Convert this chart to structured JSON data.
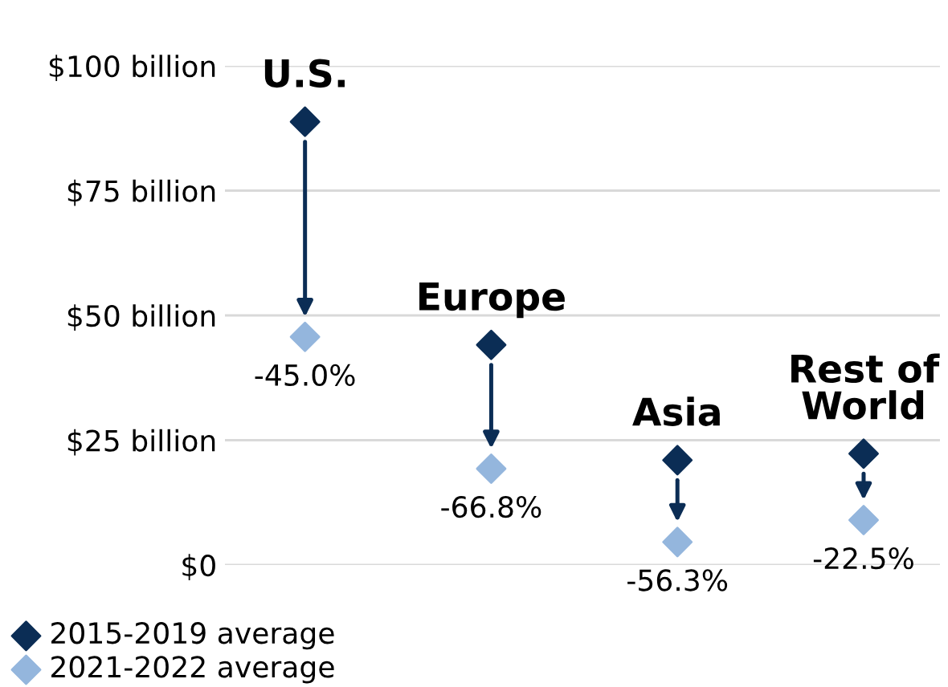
{
  "chart_data": {
    "type": "scatter",
    "categories": [
      "U.S.",
      "Europe",
      "Asia",
      "Rest of World"
    ],
    "series": [
      {
        "name": "2015-2019 average",
        "color": "#0b2d55",
        "values": [
          88.8,
          44.1,
          21.0,
          22.3
        ]
      },
      {
        "name": "2021-2022 average",
        "color": "#94b6dd",
        "values": [
          45.7,
          19.3,
          4.6,
          9.0
        ]
      }
    ],
    "annotations": [
      {
        "text": "-45.0%",
        "x": "U.S.",
        "y": 45.7
      },
      {
        "text": "-66.8%",
        "x": "Europe",
        "y": 19.3
      },
      {
        "text": "-56.3%",
        "x": "Asia",
        "y": 4.6
      },
      {
        "text": "-22.5%",
        "x": "Rest of World",
        "y": 9.0
      }
    ],
    "ylim": [
      0,
      100
    ],
    "yticks": [
      {
        "value": 0,
        "label": "$0"
      },
      {
        "value": 25,
        "label": "$25 billion"
      },
      {
        "value": 50,
        "label": "$50 billion"
      },
      {
        "value": 75,
        "label": "$75 billion"
      },
      {
        "value": 100,
        "label": "$100 billion"
      }
    ],
    "grid": "y",
    "legend": "bottom left",
    "marker": "diamond",
    "tick_labels": "y"
  }
}
